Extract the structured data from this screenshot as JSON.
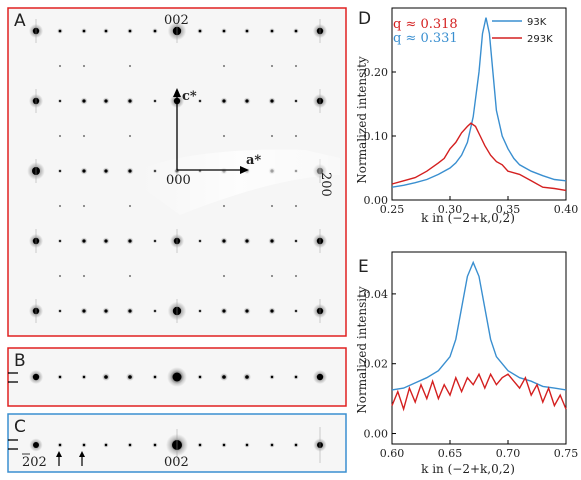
{
  "colors": {
    "frame_red": "#e02020",
    "frame_blue": "#3a8fd0",
    "series_93K": "#3a8fd0",
    "series_293K": "#d42020",
    "spot": "#000000",
    "background": "#f6f6f6"
  },
  "panels": {
    "A": {
      "letter": "A",
      "top_label": "002",
      "origin_label": "000",
      "right_label": "200",
      "c_axis_label": "c*",
      "a_axis_label": "a*"
    },
    "B": {
      "letter": "B"
    },
    "C": {
      "letter": "C",
      "left_label": "202",
      "center_label": "002",
      "arrow_icons": [
        "up-arrow-icon",
        "up-arrow-icon"
      ]
    }
  },
  "chart_data": [
    {
      "id": "D",
      "type": "line",
      "letter": "D",
      "xlabel": "k in (−2+k,0,2)",
      "ylabel": "Normalized intensity",
      "xlim": [
        0.25,
        0.4
      ],
      "ylim": [
        0,
        0.3
      ],
      "xticks": [
        "0.25",
        "0.30",
        "0.35",
        "0.40"
      ],
      "yticks": [
        "0.00",
        "0.10",
        "0.20"
      ],
      "annotations": [
        {
          "text": "q ≈ 0.318",
          "color": "#d42020"
        },
        {
          "text": "q ≈ 0.331",
          "color": "#3a8fd0"
        }
      ],
      "legend_position": "top-right",
      "series": [
        {
          "name": "93K",
          "color": "#3a8fd0",
          "x": [
            0.25,
            0.26,
            0.27,
            0.28,
            0.29,
            0.3,
            0.305,
            0.31,
            0.315,
            0.32,
            0.325,
            0.328,
            0.331,
            0.334,
            0.337,
            0.34,
            0.345,
            0.35,
            0.355,
            0.36,
            0.37,
            0.38,
            0.39,
            0.4
          ],
          "y": [
            0.02,
            0.023,
            0.027,
            0.032,
            0.04,
            0.05,
            0.058,
            0.07,
            0.09,
            0.13,
            0.2,
            0.26,
            0.285,
            0.26,
            0.2,
            0.14,
            0.1,
            0.08,
            0.065,
            0.055,
            0.045,
            0.038,
            0.032,
            0.03
          ]
        },
        {
          "name": "293K",
          "color": "#d42020",
          "x": [
            0.25,
            0.26,
            0.27,
            0.28,
            0.29,
            0.295,
            0.3,
            0.305,
            0.31,
            0.315,
            0.318,
            0.322,
            0.326,
            0.33,
            0.335,
            0.34,
            0.345,
            0.35,
            0.36,
            0.37,
            0.38,
            0.39,
            0.4
          ],
          "y": [
            0.025,
            0.03,
            0.035,
            0.045,
            0.058,
            0.065,
            0.08,
            0.09,
            0.105,
            0.115,
            0.12,
            0.115,
            0.1,
            0.085,
            0.07,
            0.06,
            0.055,
            0.045,
            0.04,
            0.03,
            0.02,
            0.018,
            0.015
          ]
        }
      ]
    },
    {
      "id": "E",
      "type": "line",
      "letter": "E",
      "xlabel": "k in (−2+k,0,2)",
      "ylabel": "Normalized intensity",
      "xlim": [
        0.6,
        0.75
      ],
      "ylim": [
        -0.003,
        0.052
      ],
      "xticks": [
        "0.60",
        "0.65",
        "0.70",
        "0.75"
      ],
      "yticks": [
        "0.00",
        "0.02",
        "0.04"
      ],
      "series": [
        {
          "name": "93K",
          "color": "#3a8fd0",
          "x": [
            0.6,
            0.61,
            0.62,
            0.63,
            0.64,
            0.65,
            0.655,
            0.66,
            0.665,
            0.67,
            0.675,
            0.68,
            0.685,
            0.69,
            0.7,
            0.71,
            0.72,
            0.73,
            0.74,
            0.75
          ],
          "y": [
            0.0125,
            0.013,
            0.0145,
            0.016,
            0.018,
            0.022,
            0.027,
            0.036,
            0.045,
            0.049,
            0.045,
            0.036,
            0.027,
            0.022,
            0.018,
            0.016,
            0.015,
            0.0135,
            0.013,
            0.0125
          ]
        },
        {
          "name": "293K",
          "color": "#d42020",
          "x": [
            0.6,
            0.605,
            0.61,
            0.615,
            0.62,
            0.625,
            0.63,
            0.635,
            0.64,
            0.645,
            0.65,
            0.655,
            0.66,
            0.665,
            0.67,
            0.675,
            0.68,
            0.685,
            0.69,
            0.695,
            0.7,
            0.705,
            0.71,
            0.715,
            0.72,
            0.725,
            0.73,
            0.735,
            0.74,
            0.745,
            0.75
          ],
          "y": [
            0.008,
            0.012,
            0.007,
            0.013,
            0.009,
            0.014,
            0.01,
            0.015,
            0.01,
            0.014,
            0.011,
            0.016,
            0.012,
            0.016,
            0.014,
            0.017,
            0.013,
            0.017,
            0.014,
            0.016,
            0.017,
            0.015,
            0.013,
            0.016,
            0.011,
            0.014,
            0.009,
            0.013,
            0.008,
            0.011,
            0.007
          ]
        }
      ]
    }
  ]
}
